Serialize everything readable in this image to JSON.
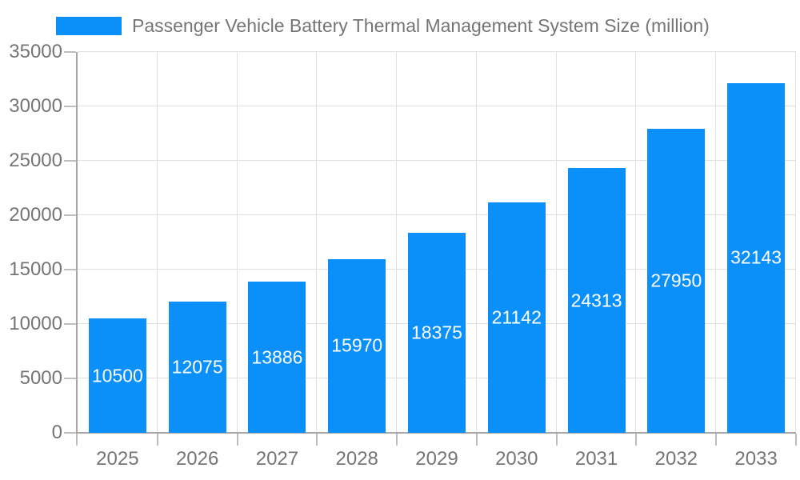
{
  "legend": {
    "label": "Passenger Vehicle Battery Thermal Management System Size (million)"
  },
  "chart_data": {
    "type": "bar",
    "title": "Passenger Vehicle Battery Thermal Management System Size (million)",
    "series_name": "Passenger Vehicle Battery Thermal Management System Size (million)",
    "categories": [
      "2025",
      "2026",
      "2027",
      "2028",
      "2029",
      "2030",
      "2031",
      "2032",
      "2033"
    ],
    "values": [
      10500,
      12075,
      13886,
      15970,
      18375,
      21142,
      24313,
      27950,
      32143
    ],
    "xlabel": "",
    "ylabel": "",
    "ylim": [
      0,
      35000
    ],
    "yticks": [
      0,
      5000,
      10000,
      15000,
      20000,
      25000,
      30000,
      35000
    ],
    "grid": true,
    "legend_position": "top",
    "colors": {
      "bar": "#0a90f8",
      "bar_label": "#ffffff",
      "axis_text": "#757575",
      "gridline": "#e0e0e0",
      "axis_line": "#a6a6a6",
      "tick_mark": "#bdbdbd",
      "background": "#ffffff"
    }
  }
}
